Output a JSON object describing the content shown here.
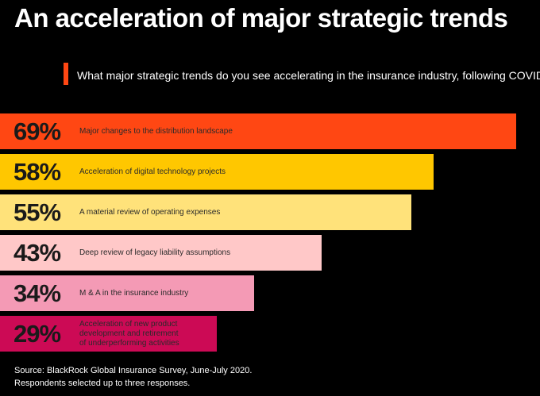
{
  "header": {
    "title": "An acceleration of major strategic trends",
    "question": "What major strategic trends do you see accelerating in the insurance industry, following COVID?"
  },
  "chart_data": {
    "type": "bar",
    "orientation": "horizontal",
    "xlim": [
      0,
      70
    ],
    "categories": [
      "Major changes to the distribution landscape",
      "Acceleration of digital technology projects",
      "A material review of operating expenses",
      "Deep review of legacy liability assumptions",
      "M & A in the insurance industry",
      "Acceleration of new product\ndevelopment and retirement\nof underperforming activities"
    ],
    "values": [
      69,
      58,
      55,
      43,
      34,
      29
    ],
    "value_labels": [
      "69%",
      "58%",
      "55%",
      "43%",
      "34%",
      "29%"
    ],
    "colors": [
      "#ff4713",
      "#ffc700",
      "#ffe27a",
      "#ffc8c8",
      "#f49ab5",
      "#cc0a55"
    ]
  },
  "footer": {
    "source_line1": "Source: BlackRock Global Insurance Survey, June-July 2020.",
    "source_line2": "Respondents selected up to three responses."
  }
}
